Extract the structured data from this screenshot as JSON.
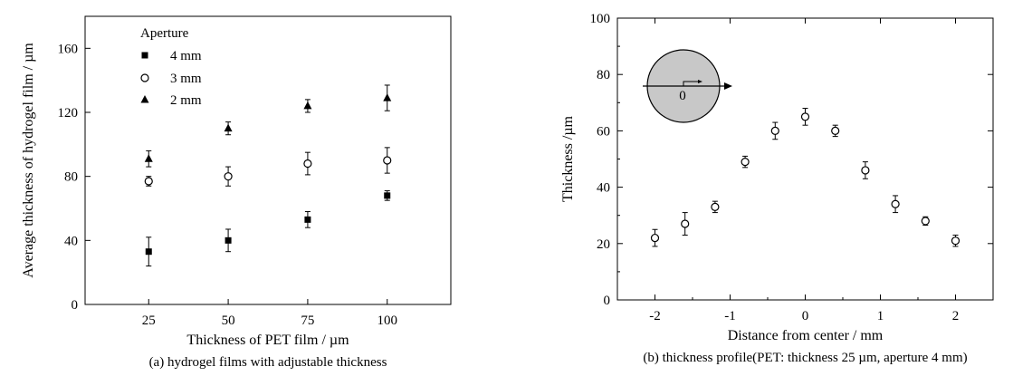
{
  "chart_data": [
    {
      "type": "scatter",
      "title": "",
      "caption": "(a) hydrogel films with adjustable thickness",
      "xlabel": "Thickness of PET film / µm",
      "ylabel": "Average thickness of hydrogel film / µm",
      "xlim": [
        5,
        120
      ],
      "ylim": [
        0,
        180
      ],
      "xticks": [
        25,
        50,
        75,
        100
      ],
      "xtick_labels": [
        "25",
        "50",
        "75",
        "100"
      ],
      "yticks": [
        0,
        40,
        80,
        120,
        160
      ],
      "ytick_labels": [
        "0",
        "40",
        "80",
        "120",
        "160"
      ],
      "legend": {
        "title": "Aperture",
        "placement": "top-left"
      },
      "series": [
        {
          "name": "4 mm",
          "marker": "square-filled",
          "x": [
            25,
            50,
            75,
            100
          ],
          "y": [
            33,
            40,
            53,
            68
          ],
          "err": [
            9,
            7,
            5,
            3
          ]
        },
        {
          "name": "3 mm",
          "marker": "circle-open",
          "x": [
            25,
            50,
            75,
            100
          ],
          "y": [
            77,
            80,
            88,
            90
          ],
          "err": [
            3,
            6,
            7,
            8
          ]
        },
        {
          "name": "2 mm",
          "marker": "triangle-filled",
          "x": [
            25,
            50,
            75,
            100
          ],
          "y": [
            91,
            110,
            124,
            129
          ],
          "err": [
            5,
            4,
            4,
            8
          ]
        }
      ]
    },
    {
      "type": "scatter",
      "title": "",
      "caption": "(b) thickness profile(PET: thickness 25 µm, aperture 4 mm)",
      "xlabel": "Distance from center / mm",
      "ylabel": "Thickness /µm",
      "xlim": [
        -2.5,
        2.5
      ],
      "ylim": [
        0,
        100
      ],
      "xticks": [
        -2,
        -1,
        0,
        1,
        2
      ],
      "xtick_labels": [
        "-2",
        "-1",
        "0",
        "1",
        "2"
      ],
      "yticks": [
        0,
        20,
        40,
        60,
        80,
        100
      ],
      "ytick_labels": [
        "0",
        "20",
        "40",
        "60",
        "80",
        "100"
      ],
      "inset": {
        "label": "0"
      },
      "series": [
        {
          "marker": "circle-open",
          "x": [
            -2,
            -1.6,
            -1.2,
            -0.8,
            -0.4,
            0,
            0.4,
            0.8,
            1.2,
            1.6,
            2
          ],
          "y": [
            22,
            27,
            33,
            49,
            60,
            65,
            60,
            46,
            34,
            28,
            21
          ],
          "err": [
            3,
            4,
            2,
            2,
            3,
            3,
            2,
            3,
            3,
            1.5,
            2
          ]
        }
      ]
    }
  ]
}
